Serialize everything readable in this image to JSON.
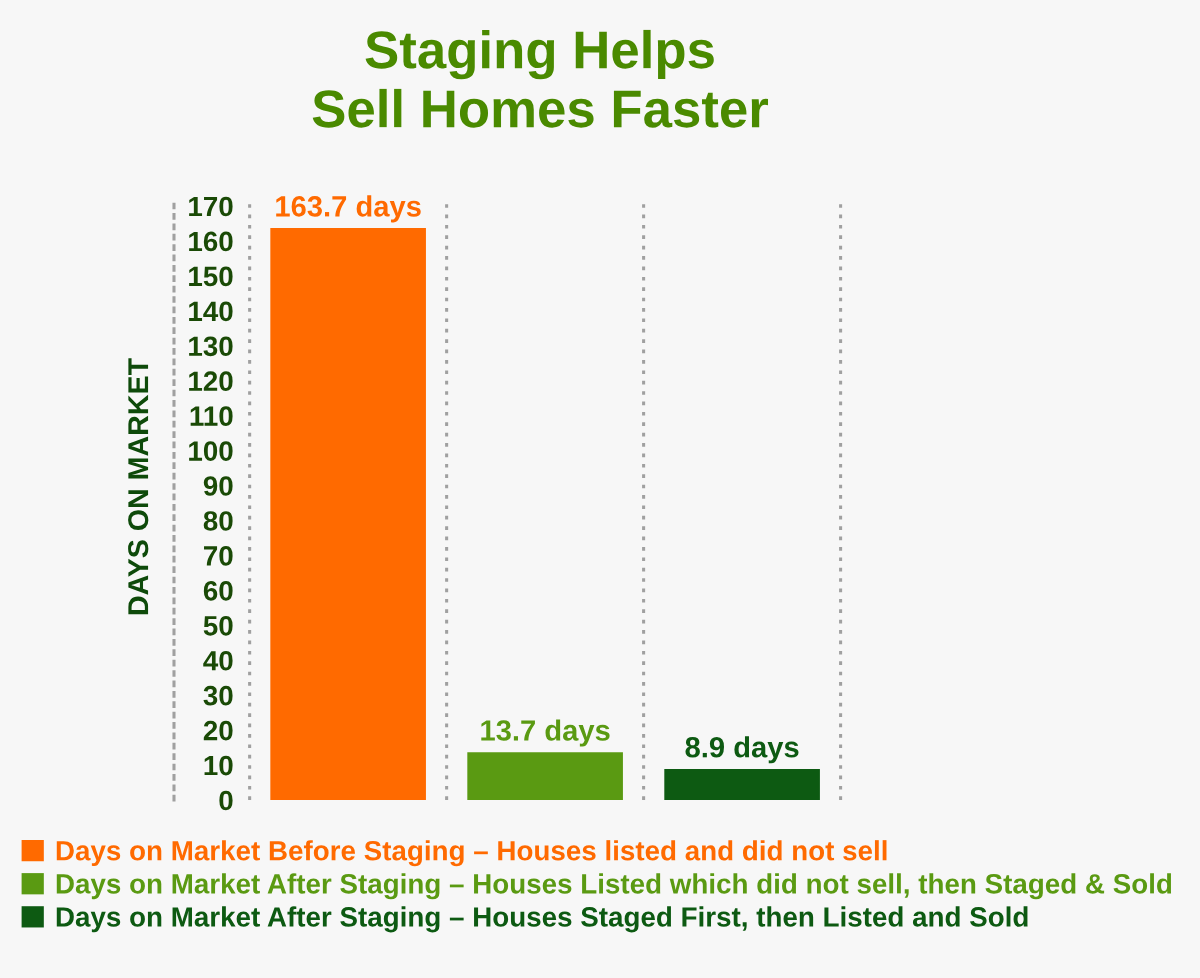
{
  "chart_data": {
    "type": "bar",
    "title": "Staging Helps\nSell Homes Faster",
    "ylabel": "DAYS ON MARKET",
    "categories": [
      null,
      null,
      null
    ],
    "stacked": true,
    "series": [
      {
        "name": "Days on Market Before Staging – Houses listed and did not sell",
        "color": "#ff6a00",
        "values": [
          163.7,
          null,
          null
        ],
        "value_labels": [
          "163.7 days",
          null,
          null
        ]
      },
      {
        "name": "Days on Market After Staging – Houses Listed which did not sell, then Staged & Sold",
        "color": "#5a9a12",
        "values": [
          null,
          13.7,
          null
        ],
        "value_labels": [
          null,
          "13.7 days",
          null
        ]
      },
      {
        "name": "Days on Market After Staging – Houses Staged First, then Listed and Sold",
        "color": "#0d5a12",
        "values": [
          null,
          null,
          8.9
        ],
        "value_labels": [
          null,
          null,
          "8.9 days"
        ]
      }
    ],
    "ylim": [
      0,
      172
    ],
    "yticks": [
      0,
      10,
      20,
      30,
      40,
      50,
      60,
      70,
      80,
      90,
      100,
      110,
      120,
      130,
      140,
      150,
      160,
      170
    ],
    "grid": "x",
    "legend": "bottom",
    "tick_labels": "y"
  }
}
